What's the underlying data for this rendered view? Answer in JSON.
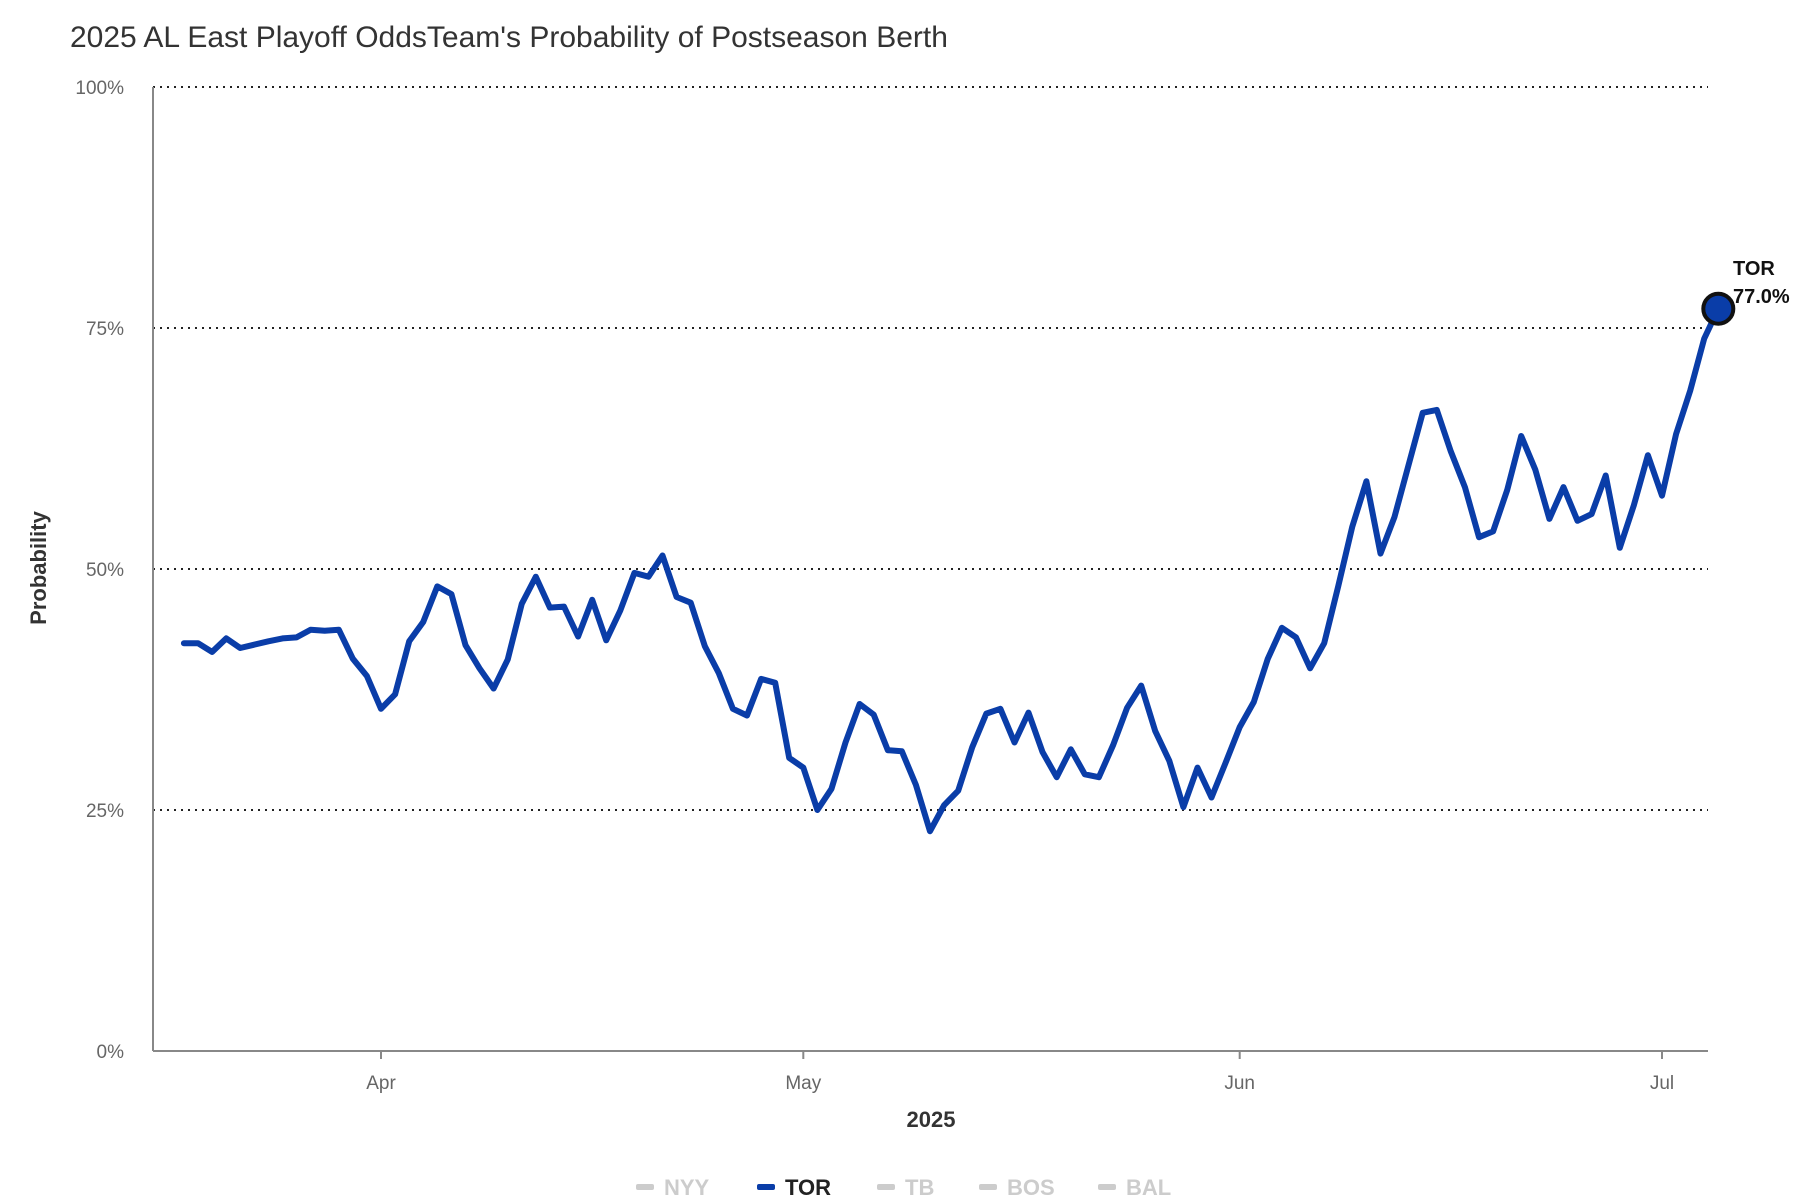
{
  "chart_data": {
    "type": "line",
    "title": "2025 AL East Playoff OddsTeam's Probability of Postseason Berth",
    "xlabel": "2025",
    "ylabel": "Probability",
    "ylim": [
      0,
      100
    ],
    "y_ticks": [
      "0%",
      "25%",
      "50%",
      "75%",
      "100%"
    ],
    "y_tick_values": [
      0,
      25,
      50,
      75,
      100
    ],
    "x_ticks": [
      {
        "label": "Apr",
        "date": "2025-04-01"
      },
      {
        "label": "May",
        "date": "2025-05-01"
      },
      {
        "label": "Jun",
        "date": "2025-06-01"
      },
      {
        "label": "Jul",
        "date": "2025-07-01"
      }
    ],
    "x_range": [
      "2025-03-16",
      "2025-07-04"
    ],
    "grid": "horizontal dotted",
    "legend_position": "bottom-center",
    "legend": [
      {
        "name": "NYY",
        "active": false
      },
      {
        "name": "TOR",
        "active": true
      },
      {
        "name": "TB",
        "active": false
      },
      {
        "name": "BOS",
        "active": false
      },
      {
        "name": "BAL",
        "active": false
      }
    ],
    "series": [
      {
        "name": "TOR",
        "color": "#0A3DA8",
        "end_label": "TOR",
        "end_value_label": "77.0%",
        "points": [
          [
            "2025-03-18",
            42.3
          ],
          [
            "2025-03-19",
            42.3
          ],
          [
            "2025-03-20",
            41.4
          ],
          [
            "2025-03-21",
            42.8
          ],
          [
            "2025-03-22",
            41.8
          ],
          [
            "2025-03-24",
            42.5
          ],
          [
            "2025-03-25",
            42.8
          ],
          [
            "2025-03-26",
            42.9
          ],
          [
            "2025-03-27",
            43.7
          ],
          [
            "2025-03-28",
            43.6
          ],
          [
            "2025-03-29",
            43.7
          ],
          [
            "2025-03-30",
            40.7
          ],
          [
            "2025-03-31",
            38.9
          ],
          [
            "2025-04-01",
            35.5
          ],
          [
            "2025-04-02",
            37.0
          ],
          [
            "2025-04-03",
            42.5
          ],
          [
            "2025-04-04",
            44.5
          ],
          [
            "2025-04-05",
            48.2
          ],
          [
            "2025-04-06",
            47.4
          ],
          [
            "2025-04-07",
            42.1
          ],
          [
            "2025-04-08",
            39.7
          ],
          [
            "2025-04-09",
            37.6
          ],
          [
            "2025-04-10",
            40.6
          ],
          [
            "2025-04-11",
            46.4
          ],
          [
            "2025-04-12",
            49.2
          ],
          [
            "2025-04-13",
            46.0
          ],
          [
            "2025-04-14",
            46.1
          ],
          [
            "2025-04-15",
            43.0
          ],
          [
            "2025-04-16",
            46.8
          ],
          [
            "2025-04-17",
            42.6
          ],
          [
            "2025-04-18",
            45.7
          ],
          [
            "2025-04-19",
            49.6
          ],
          [
            "2025-04-20",
            49.2
          ],
          [
            "2025-04-21",
            51.4
          ],
          [
            "2025-04-22",
            47.1
          ],
          [
            "2025-04-23",
            46.5
          ],
          [
            "2025-04-24",
            42.0
          ],
          [
            "2025-04-25",
            39.2
          ],
          [
            "2025-04-26",
            35.5
          ],
          [
            "2025-04-27",
            34.8
          ],
          [
            "2025-04-28",
            38.6
          ],
          [
            "2025-04-29",
            38.2
          ],
          [
            "2025-04-30",
            30.4
          ],
          [
            "2025-05-01",
            29.4
          ],
          [
            "2025-05-02",
            25.0
          ],
          [
            "2025-05-03",
            27.2
          ],
          [
            "2025-05-04",
            32.0
          ],
          [
            "2025-05-05",
            36.0
          ],
          [
            "2025-05-06",
            34.9
          ],
          [
            "2025-05-07",
            31.2
          ],
          [
            "2025-05-08",
            31.1
          ],
          [
            "2025-05-09",
            27.6
          ],
          [
            "2025-05-10",
            22.8
          ],
          [
            "2025-05-11",
            25.5
          ],
          [
            "2025-05-12",
            27.0
          ],
          [
            "2025-05-13",
            31.5
          ],
          [
            "2025-05-14",
            35.0
          ],
          [
            "2025-05-15",
            35.5
          ],
          [
            "2025-05-16",
            32.0
          ],
          [
            "2025-05-17",
            35.1
          ],
          [
            "2025-05-18",
            31.0
          ],
          [
            "2025-05-19",
            28.4
          ],
          [
            "2025-05-20",
            31.3
          ],
          [
            "2025-05-21",
            28.7
          ],
          [
            "2025-05-22",
            28.4
          ],
          [
            "2025-05-23",
            31.7
          ],
          [
            "2025-05-24",
            35.6
          ],
          [
            "2025-05-25",
            37.9
          ],
          [
            "2025-05-26",
            33.2
          ],
          [
            "2025-05-27",
            30.1
          ],
          [
            "2025-05-28",
            25.3
          ],
          [
            "2025-05-29",
            29.4
          ],
          [
            "2025-05-30",
            26.3
          ],
          [
            "2025-05-31",
            29.9
          ],
          [
            "2025-06-01",
            33.6
          ],
          [
            "2025-06-02",
            36.2
          ],
          [
            "2025-06-03",
            40.7
          ],
          [
            "2025-06-04",
            43.9
          ],
          [
            "2025-06-05",
            42.9
          ],
          [
            "2025-06-06",
            39.7
          ],
          [
            "2025-06-07",
            42.3
          ],
          [
            "2025-06-08",
            48.2
          ],
          [
            "2025-06-09",
            54.4
          ],
          [
            "2025-06-10",
            59.1
          ],
          [
            "2025-06-11",
            51.6
          ],
          [
            "2025-06-12",
            55.4
          ],
          [
            "2025-06-13",
            60.8
          ],
          [
            "2025-06-14",
            66.2
          ],
          [
            "2025-06-15",
            66.5
          ],
          [
            "2025-06-16",
            62.2
          ],
          [
            "2025-06-17",
            58.5
          ],
          [
            "2025-06-18",
            53.3
          ],
          [
            "2025-06-19",
            53.9
          ],
          [
            "2025-06-20",
            58.2
          ],
          [
            "2025-06-21",
            63.8
          ],
          [
            "2025-06-22",
            60.3
          ],
          [
            "2025-06-23",
            55.2
          ],
          [
            "2025-06-24",
            58.5
          ],
          [
            "2025-06-25",
            55.0
          ],
          [
            "2025-06-26",
            55.7
          ],
          [
            "2025-06-27",
            59.7
          ],
          [
            "2025-06-28",
            52.2
          ],
          [
            "2025-06-29",
            56.6
          ],
          [
            "2025-06-30",
            61.8
          ],
          [
            "2025-07-01",
            57.6
          ],
          [
            "2025-07-02",
            64.0
          ],
          [
            "2025-07-03",
            68.5
          ],
          [
            "2025-07-04",
            73.9
          ],
          [
            "2025-07-05",
            77.0
          ]
        ]
      }
    ]
  },
  "colors": {
    "inactive_legend": "#cccccc",
    "axis": "#888888",
    "grid": "#222222"
  }
}
